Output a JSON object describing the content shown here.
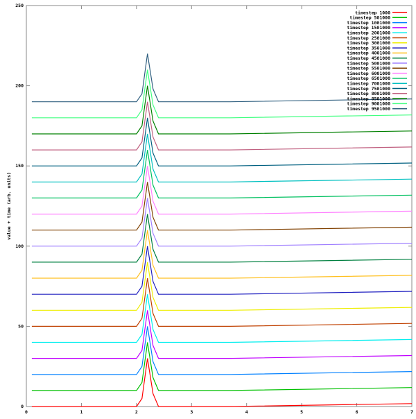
{
  "chart_data": {
    "type": "line",
    "title": "",
    "xlabel": "",
    "ylabel": "value + time (arb. units)",
    "xlim": [
      0,
      7
    ],
    "ylim": [
      0,
      250
    ],
    "xticks": [
      "0",
      "1",
      "2",
      "3",
      "4",
      "5",
      "6",
      "7"
    ],
    "yticks": [
      "0",
      "50",
      "100",
      "150",
      "200",
      "250"
    ],
    "grid": false,
    "legend_position": "top-right",
    "x": [
      0.1,
      2.0,
      2.1,
      2.2,
      2.3,
      2.4,
      3.7,
      7.0
    ],
    "profile": [
      0,
      0,
      5,
      30,
      8,
      0,
      0,
      1.8
    ],
    "offset_step": 10,
    "series": [
      {
        "name": "timestep 1000",
        "color": "#ff0000"
      },
      {
        "name": "timestep 501000",
        "color": "#00c000"
      },
      {
        "name": "timestep 1001000",
        "color": "#0080ff"
      },
      {
        "name": "timestep 1501000",
        "color": "#c000ff"
      },
      {
        "name": "timestep 2001000",
        "color": "#00eeee"
      },
      {
        "name": "timestep 2501000",
        "color": "#c04000"
      },
      {
        "name": "timestep 3001000",
        "color": "#eeee00"
      },
      {
        "name": "timestep 3501000",
        "color": "#2020c0"
      },
      {
        "name": "timestep 4001000",
        "color": "#ffc020"
      },
      {
        "name": "timestep 4501000",
        "color": "#008040"
      },
      {
        "name": "timestep 5001000",
        "color": "#a080ff"
      },
      {
        "name": "timestep 5501000",
        "color": "#804000"
      },
      {
        "name": "timestep 6001000",
        "color": "#ff80ff"
      },
      {
        "name": "timestep 6501000",
        "color": "#00c060"
      },
      {
        "name": "timestep 7001000",
        "color": "#00c0c0"
      },
      {
        "name": "timestep 7501000",
        "color": "#006080"
      },
      {
        "name": "timestep 8001000",
        "color": "#c06080"
      },
      {
        "name": "timestep 8501000",
        "color": "#008000"
      },
      {
        "name": "timestep 9001000",
        "color": "#40ff80"
      },
      {
        "name": "timestep 9501000",
        "color": "#306080"
      }
    ]
  }
}
